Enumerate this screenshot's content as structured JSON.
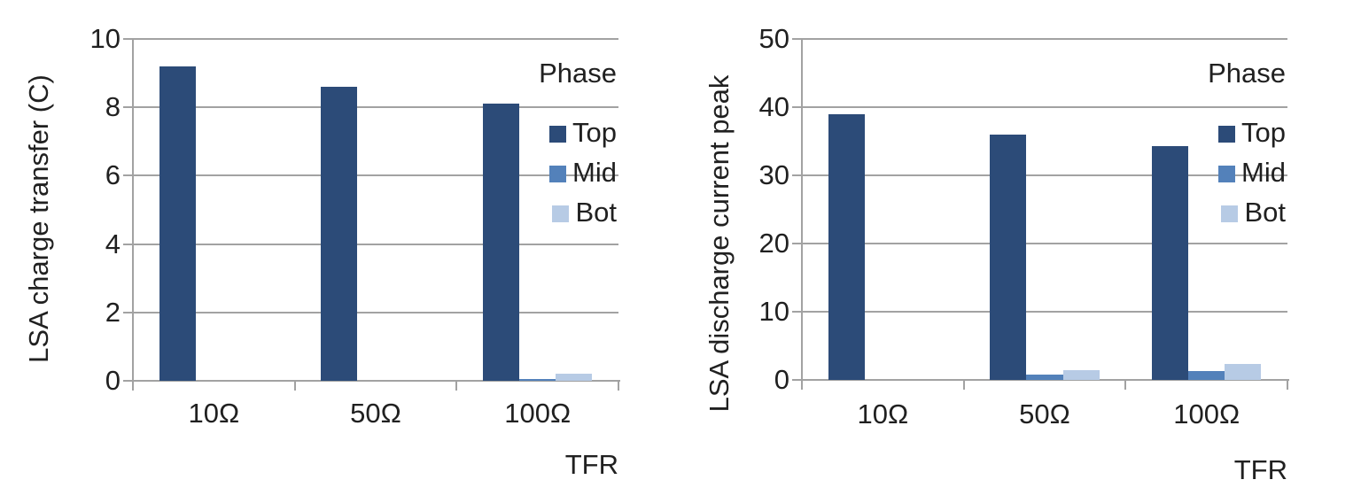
{
  "colors": {
    "background": "#ffffff",
    "grid": "#a2a2a2",
    "axis": "#a2a2a2",
    "text": "#202020",
    "series_top": "#2c4b78",
    "series_mid": "#5381ba",
    "series_bot": "#b7cbe5"
  },
  "chart_data": [
    {
      "type": "bar",
      "title": "",
      "ylabel": "LSA charge transfer (C)",
      "xlabel": "TFR",
      "categories": [
        "10Ω",
        "50Ω",
        "100Ω"
      ],
      "series": [
        {
          "name": "Top",
          "color": "#2c4b78",
          "values": [
            9.2,
            8.6,
            8.1
          ]
        },
        {
          "name": "Mid",
          "color": "#5381ba",
          "values": [
            0,
            0,
            0.05
          ]
        },
        {
          "name": "Bot",
          "color": "#b7cbe5",
          "values": [
            0,
            0,
            0.2
          ]
        }
      ],
      "ylim": [
        0,
        10
      ],
      "yticks": [
        0,
        2,
        4,
        6,
        8,
        10
      ],
      "grid": "horizontal",
      "legend_title": "Phase",
      "legend_position": "top-right"
    },
    {
      "type": "bar",
      "title": "",
      "ylabel": "LSA discharge current peak",
      "xlabel": "TFR",
      "categories": [
        "10Ω",
        "50Ω",
        "100Ω"
      ],
      "series": [
        {
          "name": "Top",
          "color": "#2c4b78",
          "values": [
            39,
            36,
            34.3
          ]
        },
        {
          "name": "Mid",
          "color": "#5381ba",
          "values": [
            0,
            0.8,
            1.3
          ]
        },
        {
          "name": "Bot",
          "color": "#b7cbe5",
          "values": [
            0,
            1.4,
            2.3
          ]
        }
      ],
      "ylim": [
        0,
        50
      ],
      "yticks": [
        0,
        10,
        20,
        30,
        40,
        50
      ],
      "grid": "horizontal",
      "legend_title": "Phase",
      "legend_position": "top-right"
    }
  ]
}
